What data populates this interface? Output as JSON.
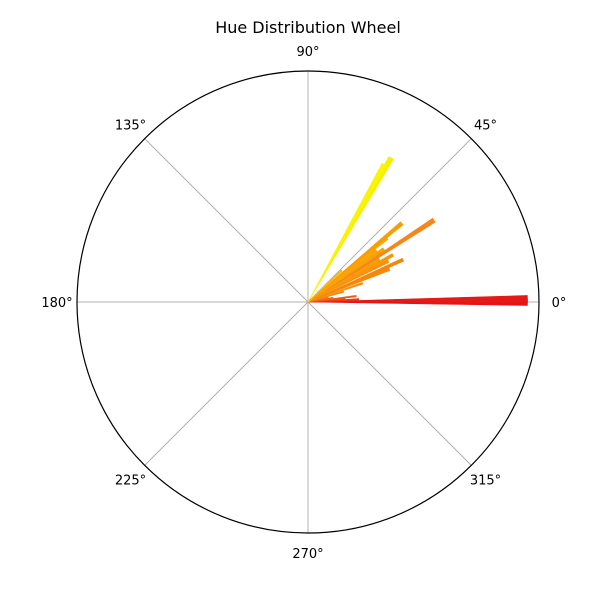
{
  "chart_data": {
    "type": "bar",
    "projection": "polar",
    "title": "Hue Distribution Wheel",
    "angle_unit": "degrees",
    "angular_tick_labels": [
      "0°",
      "45°",
      "90°",
      "135°",
      "180°",
      "225°",
      "270°",
      "315°"
    ],
    "angular_ticks": [
      0,
      45,
      90,
      135,
      180,
      225,
      270,
      315
    ],
    "grid": true,
    "radial_tick_labels_shown": false,
    "rlim": [
      0,
      1.0
    ],
    "bars": [
      {
        "angle": 0,
        "value": 0.95,
        "color": "#e8101a"
      },
      {
        "angle": 0.8,
        "value": 0.95,
        "color": "#e31a16"
      },
      {
        "angle": 3,
        "value": 0.22,
        "color": "#ea3a16"
      },
      {
        "angle": 5,
        "value": 0.16,
        "color": "#ee4b14"
      },
      {
        "angle": 7,
        "value": 0.21,
        "color": "#f05a12"
      },
      {
        "angle": 10,
        "value": 0.11,
        "color": "#f26a12"
      },
      {
        "angle": 13,
        "value": 0.09,
        "color": "#f47a10"
      },
      {
        "angle": 16,
        "value": 0.16,
        "color": "#f58410"
      },
      {
        "angle": 19,
        "value": 0.25,
        "color": "#f68c0e"
      },
      {
        "angle": 22,
        "value": 0.38,
        "color": "#f7880e"
      },
      {
        "angle": 24,
        "value": 0.45,
        "color": "#f5860c"
      },
      {
        "angle": 27,
        "value": 0.39,
        "color": "#f7920c"
      },
      {
        "angle": 29,
        "value": 0.42,
        "color": "#f8960a"
      },
      {
        "angle": 31,
        "value": 0.36,
        "color": "#f99c0a"
      },
      {
        "angle": 33,
        "value": 0.65,
        "color": "#f5861a"
      },
      {
        "angle": 35,
        "value": 0.4,
        "color": "#f9a008"
      },
      {
        "angle": 37,
        "value": 0.37,
        "color": "#f9a408"
      },
      {
        "angle": 39,
        "value": 0.44,
        "color": "#faaa06"
      },
      {
        "angle": 40,
        "value": 0.53,
        "color": "#fa9c06"
      },
      {
        "angle": 43,
        "value": 0.2,
        "color": "#fbb804"
      },
      {
        "angle": 60,
        "value": 0.72,
        "color": "#f5f000"
      },
      {
        "angle": 61,
        "value": 0.68,
        "color": "#f9f400"
      }
    ]
  }
}
